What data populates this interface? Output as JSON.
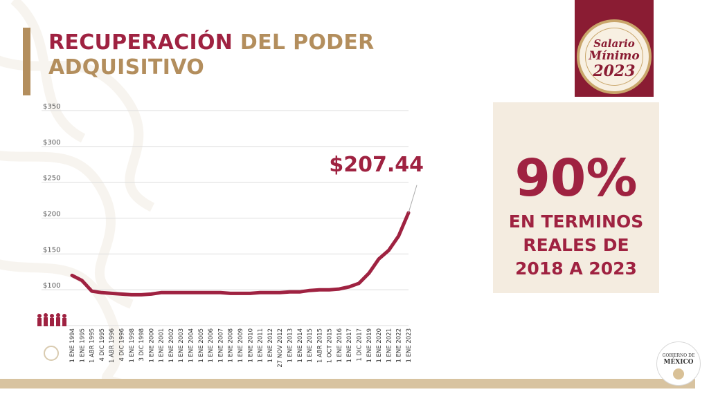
{
  "header": {
    "title_part1": "RECUPERACIÓN",
    "title_part2": "DEL PODER",
    "title_line2": "ADQUISITIVO"
  },
  "badge": {
    "line1": "Salario",
    "line2": "Mínimo",
    "line3": "2023"
  },
  "info_box": {
    "percent": "90%",
    "description": "EN TERMINOS\nREALES DE\n2018 A 2023"
  },
  "footer": {
    "gov_line1": "GOBIERNO DE",
    "gov_line2": "MÉXICO"
  },
  "colors": {
    "guinda": "#9f2241",
    "gold": "#b38e5d",
    "line": "#9f2241"
  },
  "chart_data": {
    "type": "line",
    "title": "",
    "xlabel": "",
    "ylabel": "",
    "ylim": [
      50,
      350
    ],
    "yticks": [
      50,
      100,
      150,
      200,
      250,
      300,
      350
    ],
    "ytick_labels": [
      "",
      "$100",
      "$150",
      "$200",
      "$250",
      "$300",
      "$350"
    ],
    "grid": true,
    "categories": [
      "1 ENE 1994",
      "1 ENE 1995",
      "1 ABR 1995",
      "4 DIC 1995",
      "1 ABR 1996",
      "4 DIC 1996",
      "1 ENE 1998",
      "3 DIC 1998",
      "1 ENE 2000",
      "1 ENE 2001",
      "1 ENE 2002",
      "1 ENE 2003",
      "1 ENE 2004",
      "1 ENE 2005",
      "1 ENE 2006",
      "1 ENE 2007",
      "1 ENE 2008",
      "1 ENE 2009",
      "1 ENE 2010",
      "1 ENE 2011",
      "1 ENE 2012",
      "27 NOV 2012",
      "1 ENE 2013",
      "1 ENE 2014",
      "1 ENE 2015",
      "1 ABR 2015",
      "1 OCT 2015",
      "1 ENE 2016",
      "1 ENE 2017",
      "1 DIC 2017",
      "1 ENE 2019",
      "1 ENE 2020",
      "1 ENE 2021",
      "1 ENE 2022",
      "1 ENE 2023"
    ],
    "series": [
      {
        "values": [
          120,
          113,
          98,
          96,
          95,
          94,
          93,
          93,
          94,
          96,
          96,
          96,
          96,
          96,
          96,
          96,
          95,
          95,
          95,
          96,
          96,
          96,
          97,
          97,
          99,
          100,
          100,
          101,
          104,
          109,
          123,
          143,
          155,
          175,
          207.44
        ]
      }
    ],
    "annotations": [
      {
        "text": "$207.44",
        "x": "1 ENE 2023",
        "y": 207.44
      }
    ]
  }
}
